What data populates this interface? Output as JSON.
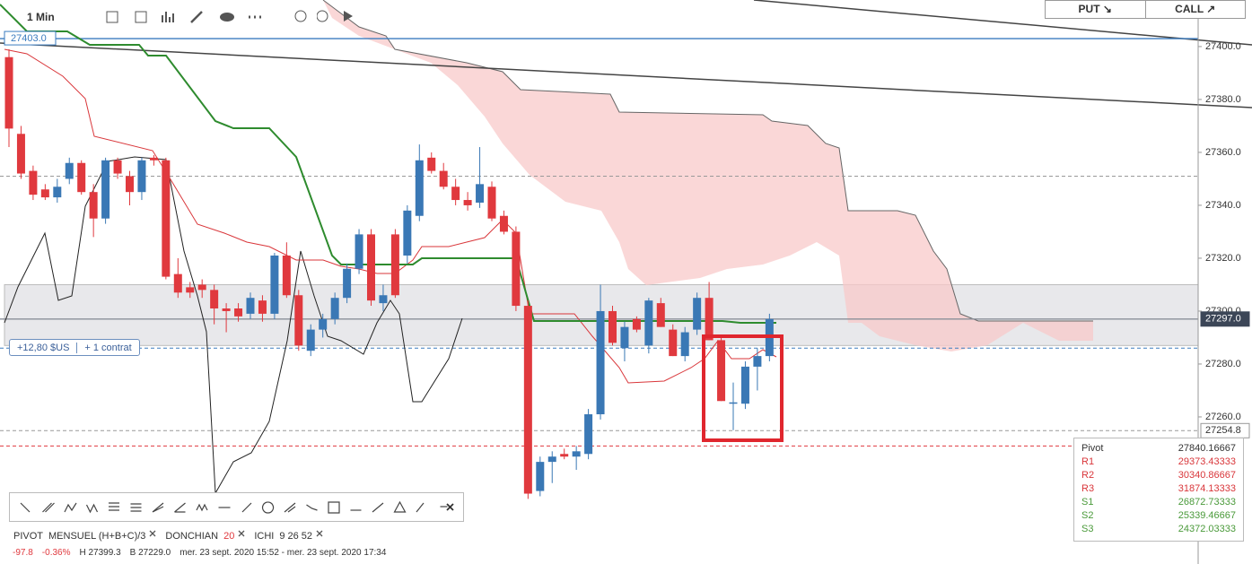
{
  "toolbar": {
    "interval": "1 Min"
  },
  "trade_buttons": {
    "put": "PUT ↘",
    "call": "CALL ↗"
  },
  "position": {
    "pnl": "+12,80 $US",
    "size": "+ 1 contrat"
  },
  "indicators": [
    {
      "name": "PIVOT",
      "params": "MENSUEL  (H+B+C)/3"
    },
    {
      "name": "DONCHIAN",
      "params": "20"
    },
    {
      "name": "ICHI",
      "params": "9  26  52"
    }
  ],
  "status": {
    "change": "-97.8",
    "change_pct": "-0.36%",
    "high": "H 27399.3",
    "low": "B 27229.0",
    "range": "mer. 23 sept. 2020 15:52 - mer. 23 sept. 2020 17:34"
  },
  "pivot_table": {
    "rows": [
      [
        "Pivot",
        "27840.16667"
      ],
      [
        "R1",
        "29373.43333"
      ],
      [
        "R2",
        "30340.86667"
      ],
      [
        "R3",
        "31874.13333"
      ],
      [
        "S1",
        "26872.73333"
      ],
      [
        "S2",
        "25339.46667"
      ],
      [
        "S3",
        "24372.03333"
      ]
    ]
  },
  "chart_data": {
    "type": "candlestick",
    "up_color": "#3a78b5",
    "down_color": "#e0393e",
    "open": [
      27396,
      27367,
      27353,
      27346,
      27343,
      27350,
      27356,
      27345,
      27335,
      27357,
      27351,
      27345,
      27358,
      27357,
      27314,
      27309,
      27310,
      27308,
      27301,
      27301,
      27299,
      27304,
      27299,
      27321,
      27306,
      27285,
      27293,
      27297,
      27305,
      27316,
      27329,
      27303,
      27329,
      27321,
      27336,
      27358,
      27353,
      27347,
      27342,
      27341,
      27347,
      27336,
      27330,
      27302,
      27232,
      27243,
      27246,
      27245,
      27246,
      27261,
      27300,
      27286,
      27297,
      27287,
      27303,
      27293,
      27283,
      27293,
      27305,
      27289,
      27265,
      27265,
      27279,
      27283
    ],
    "high": [
      27399,
      27370,
      27355,
      27348,
      27350,
      27358,
      27357,
      27348,
      27358,
      27358,
      27353,
      27358,
      27359,
      27358,
      27320,
      27311,
      27312,
      27310,
      27303,
      27303,
      27307,
      27306,
      27322,
      27326,
      27308,
      27295,
      27299,
      27307,
      27318,
      27331,
      27331,
      27310,
      27331,
      27340,
      27363,
      27360,
      27356,
      27350,
      27345,
      27362,
      27349,
      27338,
      27332,
      27304,
      27245,
      27247,
      27248,
      27249,
      27263,
      27310,
      27302,
      27296,
      27298,
      27305,
      27305,
      27295,
      27294,
      27307,
      27311,
      27291,
      27273,
      27281,
      27286,
      27299
    ],
    "low": [
      27362,
      27350,
      27342,
      27342,
      27341,
      27348,
      27344,
      27328,
      27333,
      27350,
      27340,
      27342,
      27355,
      27312,
      27305,
      27305,
      27305,
      27295,
      27292,
      27296,
      27297,
      27296,
      27297,
      27305,
      27285,
      27283,
      27290,
      27295,
      27303,
      27314,
      27302,
      27300,
      27305,
      27318,
      27334,
      27352,
      27346,
      27340,
      27338,
      27339,
      27334,
      27329,
      27300,
      27229,
      27230,
      27235,
      27244,
      27240,
      27244,
      27259,
      27287,
      27281,
      27292,
      27284,
      27294,
      27283,
      27281,
      27291,
      27289,
      27266,
      27255,
      27263,
      27270,
      27281
    ],
    "close": [
      27369,
      27352,
      27344,
      27343,
      27347,
      27356,
      27345,
      27335,
      27357,
      27352,
      27345,
      27357,
      27357,
      27313,
      27307,
      27307,
      27308,
      27301,
      27300,
      27298,
      27305,
      27299,
      27321,
      27306,
      27287,
      27293,
      27297,
      27305,
      27316,
      27329,
      27304,
      27306,
      27306,
      27338,
      27357,
      27353,
      27347,
      27342,
      27340,
      27348,
      27335,
      27330,
      27302,
      27231,
      27243,
      27245,
      27245,
      27247,
      27261,
      27300,
      27288,
      27294,
      27293,
      27304,
      27294,
      27283,
      27292,
      27305,
      27289,
      27266,
      27265.5,
      27279,
      27283,
      27297
    ],
    "ylim": [
      27204.4,
      27417.6
    ],
    "yticks": [
      {
        "value": 27260,
        "label": "27260.0"
      },
      {
        "value": 27280,
        "label": "27280.0"
      },
      {
        "value": 27300,
        "label": "27300.0"
      },
      {
        "value": 27320,
        "label": "27320.0"
      },
      {
        "value": 27340,
        "label": "27340.0"
      },
      {
        "value": 27360,
        "label": "27360.0"
      },
      {
        "value": 27380,
        "label": "27380.0"
      },
      {
        "value": 27400,
        "label": "27400.0"
      }
    ],
    "band": [
      27287,
      27310
    ],
    "levels": [
      {
        "value": 27403,
        "label": "27403.0",
        "color": "#3a7bbf",
        "style": "solid",
        "label_side": "left"
      },
      {
        "value": 27351,
        "color": "#999999",
        "style": "dashed"
      },
      {
        "value": 27297,
        "label": "27297.0",
        "color": "#8a8f99",
        "style": "solid",
        "label_side": "right",
        "label_fill": "#3c4657"
      },
      {
        "value": 27286,
        "color": "#3a7bbf",
        "style": "dashed"
      },
      {
        "value": 27254.8,
        "label": "27254.8",
        "color": "#999999",
        "style": "dashed",
        "label_side": "right"
      },
      {
        "value": 27249,
        "color": "#e0393e",
        "style": "dashed"
      }
    ]
  }
}
